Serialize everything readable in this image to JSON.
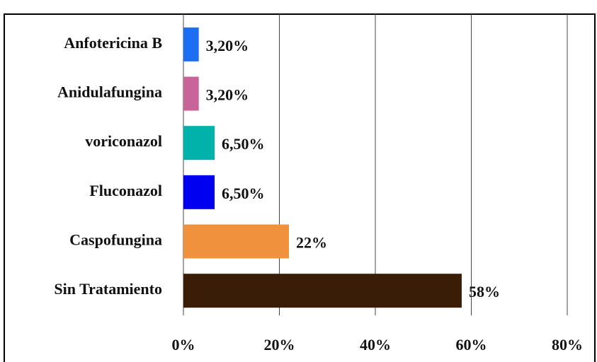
{
  "chart_data": {
    "type": "bar",
    "orientation": "horizontal",
    "categories": [
      "Anfotericina B",
      "Anidulafungina",
      "voriconazol",
      "Fluconazol",
      "Caspofungina",
      "Sin Tratamiento"
    ],
    "values": [
      3.2,
      3.2,
      6.5,
      6.5,
      22,
      58
    ],
    "value_labels": [
      "3,20%",
      "3,20%",
      "6,50%",
      "6,50%",
      "22%",
      "58%"
    ],
    "colors": [
      "#1c6ef2",
      "#c9649b",
      "#00b2aa",
      "#0000f0",
      "#f0923d",
      "#3a1d06"
    ],
    "xlim": [
      0,
      80
    ],
    "xticks": [
      {
        "value": 0,
        "label": "0%"
      },
      {
        "value": 20,
        "label": "20%"
      },
      {
        "value": 40,
        "label": "40%"
      },
      {
        "value": 60,
        "label": "60%"
      },
      {
        "value": 80,
        "label": "80%"
      }
    ],
    "grid": true
  }
}
